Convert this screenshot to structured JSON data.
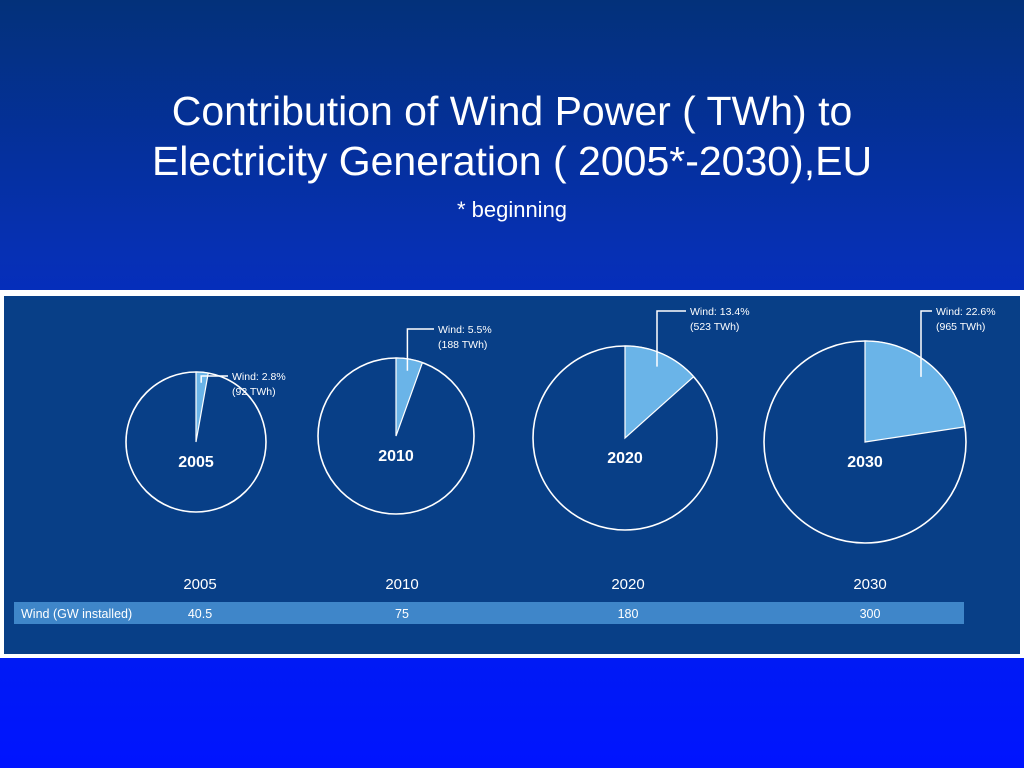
{
  "slide": {
    "title_line1": "Contribution of Wind Power ( TWh) to",
    "title_line2": "Electricity Generation ( 2005*-2030),EU",
    "subtitle": "* beginning"
  },
  "chart_data": {
    "type": "pie",
    "title": "",
    "pies": [
      {
        "year": "2005",
        "share_pct": 2.8,
        "label_line1": "Wind: 2.8%",
        "label_line2": "(92 TWh)"
      },
      {
        "year": "2010",
        "share_pct": 5.5,
        "label_line1": "Wind: 5.5%",
        "label_line2": "(188 TWh)"
      },
      {
        "year": "2020",
        "share_pct": 13.4,
        "label_line1": "Wind: 13.4%",
        "label_line2": "(523 TWh)"
      },
      {
        "year": "2030",
        "share_pct": 22.6,
        "label_line1": "Wind: 22.6%",
        "label_line2": "(965 TWh)"
      }
    ],
    "table": {
      "columns": [
        "2005",
        "2010",
        "2020",
        "2030"
      ],
      "row_label": "Wind (GW installed)",
      "values": [
        "40.5",
        "75",
        "180",
        "300"
      ]
    },
    "colors": {
      "slice": "#6ab4e8",
      "outline": "#ffffff",
      "background": "#083f87",
      "table_row": "#3f86c9"
    }
  }
}
